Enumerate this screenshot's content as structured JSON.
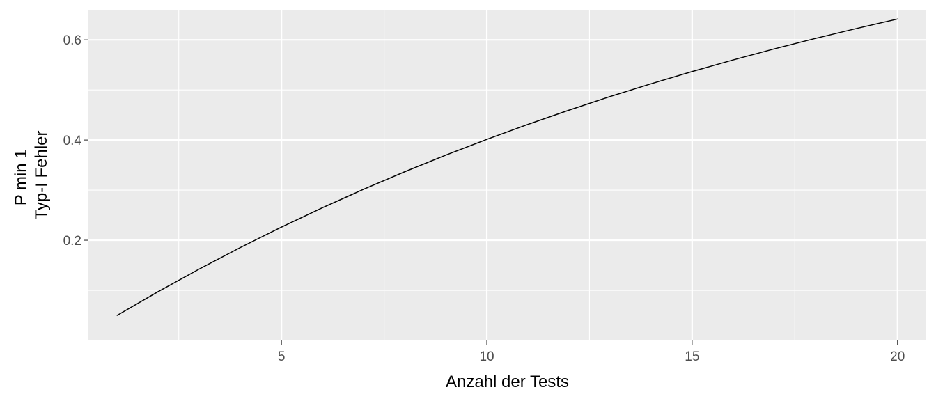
{
  "chart_data": {
    "type": "line",
    "xlabel": "Anzahl der Tests",
    "ylabel_lines": [
      "P min 1",
      "Typ-I Fehler"
    ],
    "xlim": [
      0.3,
      20.7
    ],
    "ylim": [
      0.0,
      0.66
    ],
    "x_ticks": [
      5,
      10,
      15,
      20
    ],
    "x_tick_labels": [
      "5",
      "10",
      "15",
      "20"
    ],
    "x_minor_ticks": [
      2.5,
      7.5,
      12.5,
      17.5
    ],
    "y_ticks": [
      0.2,
      0.4,
      0.6
    ],
    "y_tick_labels": [
      "0.2",
      "0.4",
      "0.6"
    ],
    "y_minor_ticks": [
      0.1,
      0.3,
      0.5
    ],
    "grid": true,
    "series": [
      {
        "color": "#000000",
        "x": [
          1,
          2,
          3,
          4,
          5,
          6,
          7,
          8,
          9,
          10,
          11,
          12,
          13,
          14,
          15,
          16,
          17,
          18,
          19,
          20
        ],
        "values": [
          0.05,
          0.0975,
          0.1426,
          0.1855,
          0.2262,
          0.2649,
          0.3017,
          0.3366,
          0.3698,
          0.4013,
          0.4312,
          0.4596,
          0.4867,
          0.5123,
          0.5367,
          0.5599,
          0.5819,
          0.6028,
          0.6226,
          0.6415
        ]
      }
    ]
  }
}
